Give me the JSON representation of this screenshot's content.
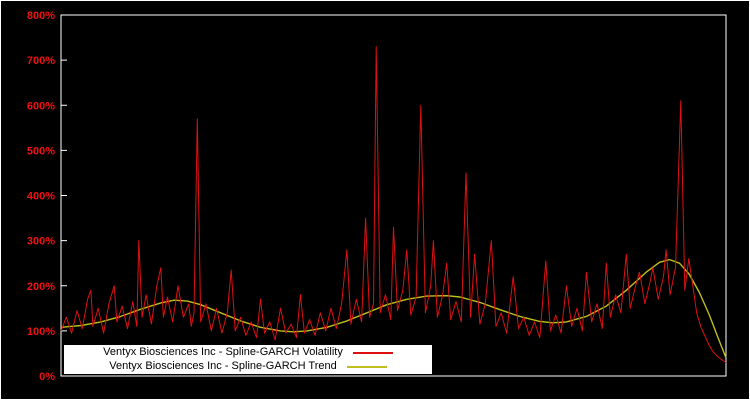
{
  "chart_data": {
    "type": "line",
    "title": "",
    "xlabel": "",
    "ylabel": "",
    "ylim": [
      0,
      800
    ],
    "x_scale": [
      0,
      1000
    ],
    "yticks": [
      "0%",
      "100%",
      "200%",
      "300%",
      "400%",
      "500%",
      "600%",
      "700%",
      "800%"
    ],
    "grid": false,
    "legend_position": "bottom-left",
    "series": [
      {
        "name": "Ventyx Biosciences Inc - Spline-GARCH Volatility",
        "color": "#dd1111",
        "points": [
          [
            0,
            100
          ],
          [
            8,
            130
          ],
          [
            16,
            95
          ],
          [
            24,
            145
          ],
          [
            32,
            105
          ],
          [
            40,
            170
          ],
          [
            45,
            190
          ],
          [
            48,
            110
          ],
          [
            56,
            150
          ],
          [
            64,
            95
          ],
          [
            72,
            160
          ],
          [
            80,
            200
          ],
          [
            84,
            120
          ],
          [
            92,
            155
          ],
          [
            100,
            105
          ],
          [
            108,
            165
          ],
          [
            114,
            110
          ],
          [
            117,
            300
          ],
          [
            122,
            130
          ],
          [
            128,
            180
          ],
          [
            136,
            115
          ],
          [
            144,
            200
          ],
          [
            150,
            240
          ],
          [
            154,
            130
          ],
          [
            160,
            175
          ],
          [
            168,
            120
          ],
          [
            176,
            200
          ],
          [
            184,
            130
          ],
          [
            192,
            160
          ],
          [
            196,
            110
          ],
          [
            200,
            140
          ],
          [
            205,
            570
          ],
          [
            210,
            120
          ],
          [
            218,
            160
          ],
          [
            226,
            100
          ],
          [
            234,
            150
          ],
          [
            242,
            95
          ],
          [
            250,
            140
          ],
          [
            256,
            235
          ],
          [
            262,
            100
          ],
          [
            270,
            130
          ],
          [
            278,
            90
          ],
          [
            286,
            120
          ],
          [
            294,
            85
          ],
          [
            300,
            170
          ],
          [
            306,
            95
          ],
          [
            314,
            120
          ],
          [
            322,
            80
          ],
          [
            330,
            150
          ],
          [
            338,
            95
          ],
          [
            346,
            115
          ],
          [
            354,
            85
          ],
          [
            360,
            180
          ],
          [
            366,
            95
          ],
          [
            374,
            125
          ],
          [
            382,
            90
          ],
          [
            390,
            140
          ],
          [
            398,
            100
          ],
          [
            406,
            150
          ],
          [
            414,
            105
          ],
          [
            422,
            160
          ],
          [
            430,
            280
          ],
          [
            436,
            115
          ],
          [
            444,
            170
          ],
          [
            452,
            120
          ],
          [
            458,
            350
          ],
          [
            464,
            130
          ],
          [
            470,
            160
          ],
          [
            474,
            730
          ],
          [
            480,
            140
          ],
          [
            488,
            180
          ],
          [
            496,
            125
          ],
          [
            500,
            330
          ],
          [
            506,
            145
          ],
          [
            514,
            190
          ],
          [
            520,
            280
          ],
          [
            526,
            135
          ],
          [
            534,
            175
          ],
          [
            541,
            600
          ],
          [
            548,
            140
          ],
          [
            556,
            200
          ],
          [
            560,
            300
          ],
          [
            566,
            130
          ],
          [
            574,
            180
          ],
          [
            580,
            250
          ],
          [
            586,
            125
          ],
          [
            594,
            165
          ],
          [
            602,
            120
          ],
          [
            609,
            450
          ],
          [
            616,
            130
          ],
          [
            622,
            270
          ],
          [
            630,
            115
          ],
          [
            638,
            160
          ],
          [
            647,
            300
          ],
          [
            654,
            110
          ],
          [
            662,
            140
          ],
          [
            670,
            95
          ],
          [
            680,
            220
          ],
          [
            688,
            105
          ],
          [
            696,
            130
          ],
          [
            704,
            90
          ],
          [
            712,
            120
          ],
          [
            720,
            85
          ],
          [
            729,
            255
          ],
          [
            736,
            100
          ],
          [
            744,
            135
          ],
          [
            752,
            95
          ],
          [
            760,
            200
          ],
          [
            768,
            110
          ],
          [
            776,
            150
          ],
          [
            784,
            100
          ],
          [
            790,
            230
          ],
          [
            798,
            120
          ],
          [
            806,
            160
          ],
          [
            814,
            105
          ],
          [
            820,
            250
          ],
          [
            826,
            130
          ],
          [
            834,
            180
          ],
          [
            842,
            140
          ],
          [
            850,
            270
          ],
          [
            856,
            150
          ],
          [
            864,
            200
          ],
          [
            870,
            230
          ],
          [
            878,
            160
          ],
          [
            886,
            210
          ],
          [
            890,
            240
          ],
          [
            898,
            170
          ],
          [
            906,
            220
          ],
          [
            910,
            280
          ],
          [
            916,
            180
          ],
          [
            924,
            240
          ],
          [
            932,
            610
          ],
          [
            938,
            190
          ],
          [
            944,
            260
          ],
          [
            950,
            200
          ],
          [
            956,
            140
          ],
          [
            962,
            110
          ],
          [
            968,
            90
          ],
          [
            974,
            70
          ],
          [
            980,
            55
          ],
          [
            986,
            45
          ],
          [
            992,
            38
          ],
          [
            1000,
            30
          ]
        ]
      },
      {
        "name": "Ventyx Biosciences Inc - Spline-GARCH Trend",
        "color": "#bebe1e",
        "points": [
          [
            0,
            108
          ],
          [
            30,
            112
          ],
          [
            60,
            120
          ],
          [
            90,
            132
          ],
          [
            120,
            148
          ],
          [
            150,
            162
          ],
          [
            170,
            168
          ],
          [
            190,
            166
          ],
          [
            210,
            158
          ],
          [
            240,
            140
          ],
          [
            270,
            122
          ],
          [
            300,
            108
          ],
          [
            330,
            100
          ],
          [
            350,
            98
          ],
          [
            370,
            100
          ],
          [
            400,
            108
          ],
          [
            430,
            122
          ],
          [
            460,
            140
          ],
          [
            490,
            158
          ],
          [
            520,
            170
          ],
          [
            550,
            177
          ],
          [
            580,
            178
          ],
          [
            600,
            175
          ],
          [
            630,
            163
          ],
          [
            660,
            147
          ],
          [
            690,
            132
          ],
          [
            720,
            121
          ],
          [
            740,
            118
          ],
          [
            760,
            120
          ],
          [
            790,
            132
          ],
          [
            820,
            155
          ],
          [
            850,
            190
          ],
          [
            880,
            230
          ],
          [
            900,
            252
          ],
          [
            915,
            258
          ],
          [
            930,
            250
          ],
          [
            945,
            225
          ],
          [
            960,
            185
          ],
          [
            975,
            135
          ],
          [
            988,
            85
          ],
          [
            1000,
            40
          ]
        ]
      }
    ]
  },
  "colors": {
    "background": "#000000",
    "frame": "#ffffff",
    "tick_label": "#ee1111",
    "volatility": "#dd1111",
    "trend": "#bebe1e",
    "legend_bg": "#ffffff",
    "legend_text": "#000000"
  }
}
